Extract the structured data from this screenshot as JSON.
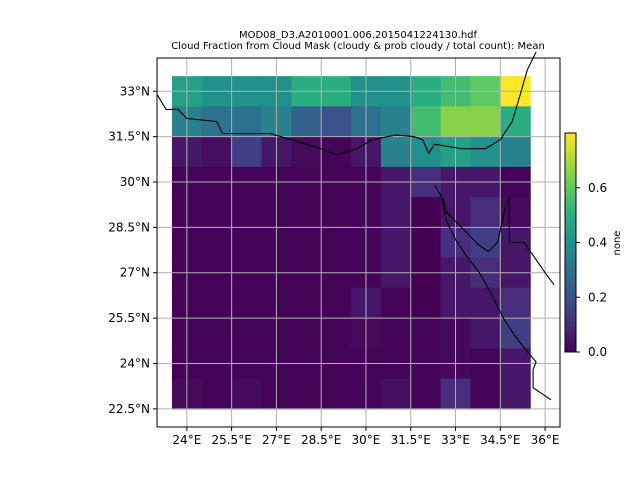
{
  "chart_data": {
    "type": "heatmap",
    "title_line1": "MOD08_D3.A2010001.006.2015041224130.hdf",
    "title_line2": "Cloud Fraction from Cloud Mask (cloudy & prob cloudy / total count): Mean",
    "x_tick_labels": [
      "24°E",
      "25.5°E",
      "27°E",
      "28.5°E",
      "30°E",
      "31.5°E",
      "33°E",
      "34.5°E",
      "36°E"
    ],
    "x_tick_values": [
      24,
      25.5,
      27,
      28.5,
      30,
      31.5,
      33,
      34.5,
      36
    ],
    "y_tick_labels": [
      "33°N",
      "31.5°N",
      "30°N",
      "28.5°N",
      "27°N",
      "25.5°N",
      "24°N",
      "22.5°N"
    ],
    "y_tick_values": [
      33,
      31.5,
      30,
      28.5,
      27,
      25.5,
      24,
      22.5
    ],
    "lon_range": [
      23,
      36.5
    ],
    "lat_range": [
      21.9,
      34.1
    ],
    "grid": true,
    "cell_lon_edges": [
      23.5,
      24.5,
      25.5,
      26.5,
      27.5,
      28.5,
      29.5,
      30.5,
      31.5,
      32.5,
      33.5,
      34.5,
      35.5
    ],
    "cell_lat_top": 33.5,
    "cell_lat_step": 1,
    "values": [
      [
        0.45,
        0.4,
        0.4,
        0.4,
        0.5,
        0.5,
        0.4,
        0.4,
        0.5,
        0.55,
        0.6,
        1.0
      ],
      [
        0.35,
        0.3,
        0.3,
        0.35,
        0.25,
        0.2,
        0.3,
        0.35,
        0.55,
        0.65,
        0.65,
        0.5
      ],
      [
        0.05,
        0.03,
        0.15,
        0.05,
        0.02,
        0.01,
        0.05,
        0.35,
        0.4,
        0.45,
        0.4,
        0.35
      ],
      [
        0.01,
        0.01,
        0.01,
        0.01,
        0.01,
        0.01,
        0.01,
        0.05,
        0.1,
        0.05,
        0.05,
        0.01
      ],
      [
        0.01,
        0.01,
        0.01,
        0.01,
        0.01,
        0.01,
        0.01,
        0.05,
        0.0,
        0.05,
        0.1,
        0.02
      ],
      [
        0.01,
        0.01,
        0.01,
        0.01,
        0.01,
        0.01,
        0.01,
        0.05,
        0.0,
        0.1,
        0.15,
        0.05
      ],
      [
        0.01,
        0.01,
        0.01,
        0.01,
        0.01,
        0.01,
        0.01,
        0.05,
        0.0,
        0.05,
        0.1,
        0.05
      ],
      [
        0.01,
        0.01,
        0.01,
        0.01,
        0.01,
        0.01,
        0.05,
        0.01,
        0.0,
        0.05,
        0.05,
        0.1
      ],
      [
        0.01,
        0.01,
        0.01,
        0.01,
        0.01,
        0.01,
        0.02,
        0.01,
        0.01,
        0.02,
        0.05,
        0.15
      ],
      [
        0.01,
        0.01,
        0.01,
        0.01,
        0.01,
        0.01,
        0.01,
        0.01,
        0.01,
        0.02,
        0.01,
        0.05
      ],
      [
        0.02,
        0.01,
        0.02,
        0.01,
        0.01,
        0.01,
        0.01,
        0.03,
        0.01,
        0.1,
        0.01,
        0.05
      ]
    ],
    "colorbar": {
      "label": "none",
      "range": [
        0,
        0.8
      ],
      "tick_values": [
        0,
        0.2,
        0.4,
        0.6
      ],
      "tick_labels": [
        "0.0",
        "0.2",
        "0.4",
        "0.6"
      ]
    },
    "coastlines": [
      [
        [
          23.0,
          32.9
        ],
        [
          23.3,
          32.4
        ],
        [
          23.7,
          32.4
        ],
        [
          24.0,
          32.1
        ],
        [
          25.0,
          32.0
        ],
        [
          25.2,
          31.6
        ],
        [
          26.8,
          31.6
        ],
        [
          27.5,
          31.4
        ],
        [
          28.5,
          31.1
        ],
        [
          29.0,
          30.9
        ],
        [
          29.7,
          31.1
        ],
        [
          30.2,
          31.4
        ],
        [
          31.0,
          31.55
        ],
        [
          31.6,
          31.5
        ],
        [
          31.9,
          31.4
        ],
        [
          32.1,
          30.95
        ],
        [
          32.3,
          31.25
        ],
        [
          33.2,
          31.1
        ],
        [
          34.0,
          31.1
        ],
        [
          34.5,
          31.4
        ],
        [
          34.9,
          32.0
        ],
        [
          35.05,
          32.5
        ],
        [
          35.2,
          33.0
        ],
        [
          35.4,
          33.7
        ],
        [
          35.7,
          34.3
        ]
      ],
      [
        [
          32.3,
          29.9
        ],
        [
          32.6,
          29.4
        ],
        [
          32.7,
          29.0
        ],
        [
          33.2,
          28.5
        ],
        [
          33.6,
          28.1
        ],
        [
          33.8,
          27.9
        ],
        [
          34.1,
          27.7
        ],
        [
          34.4,
          28.0
        ],
        [
          34.5,
          28.4
        ],
        [
          34.65,
          29.1
        ],
        [
          34.8,
          29.5
        ]
      ],
      [
        [
          32.5,
          29.6
        ],
        [
          32.7,
          28.7
        ],
        [
          33.0,
          28.1
        ],
        [
          33.4,
          27.5
        ],
        [
          33.8,
          27.0
        ],
        [
          34.2,
          26.3
        ],
        [
          34.6,
          25.5
        ],
        [
          35.0,
          24.9
        ],
        [
          35.4,
          24.4
        ],
        [
          35.7,
          24.05
        ],
        [
          35.6,
          23.8
        ],
        [
          35.6,
          23.2
        ],
        [
          36.2,
          22.8
        ]
      ],
      [
        [
          34.8,
          29.5
        ],
        [
          34.8,
          28.0
        ],
        [
          35.3,
          28.0
        ],
        [
          36.0,
          27.0
        ],
        [
          36.3,
          26.6
        ]
      ]
    ]
  }
}
